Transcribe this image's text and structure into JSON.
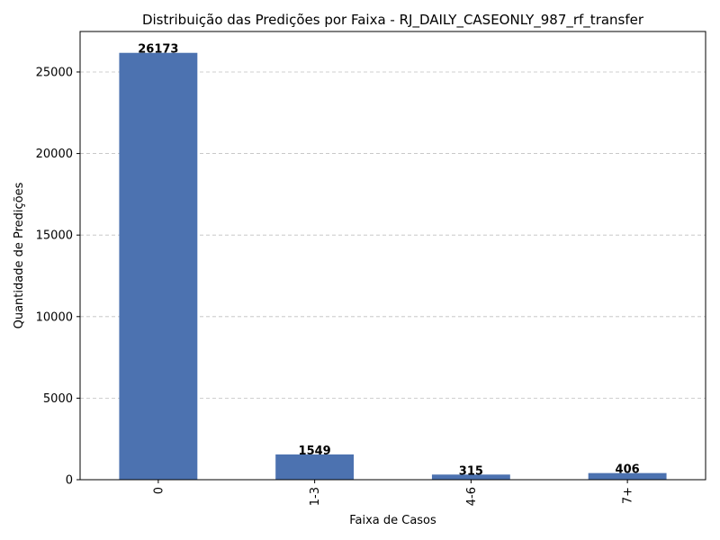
{
  "chart_data": {
    "type": "bar",
    "title": "Distribuição das Predições por Faixa - RJ_DAILY_CASEONLY_987_rf_transfer",
    "xlabel": "Faixa de Casos",
    "ylabel": "Quantidade de Predições",
    "categories": [
      "0",
      "1-3",
      "4-6",
      "7+"
    ],
    "values": [
      26173,
      1549,
      315,
      406
    ],
    "data_labels": [
      "26173",
      "1549",
      "315",
      "406"
    ],
    "ylim": [
      0,
      27482
    ],
    "yticks": [
      0,
      5000,
      10000,
      15000,
      20000,
      25000
    ],
    "ytick_labels": [
      "0",
      "5000",
      "10000",
      "15000",
      "20000",
      "25000"
    ],
    "xtick_rotation": "vertical",
    "grid": "y-axis dashed",
    "legend": "none",
    "bar_color": "#4c72b0",
    "grid_color": "#c0c0c0"
  }
}
